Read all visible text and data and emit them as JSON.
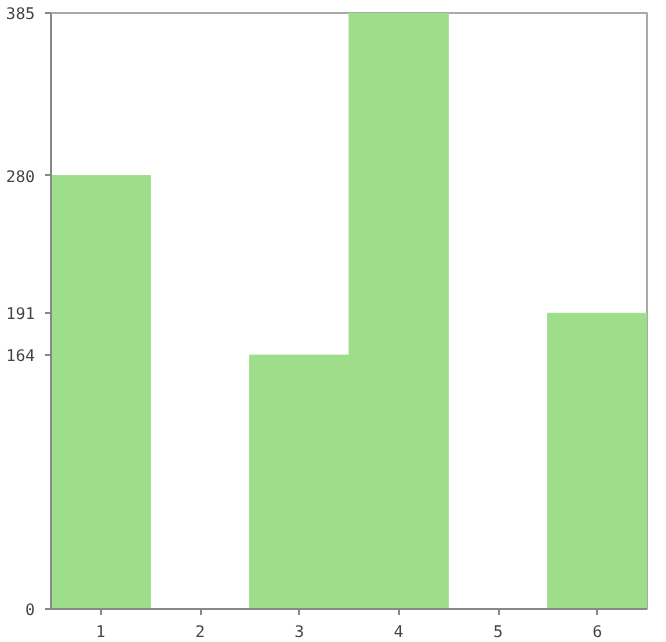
{
  "chart_data": {
    "type": "bar",
    "categories": [
      "1",
      "2",
      "3",
      "4",
      "5",
      "6"
    ],
    "values": [
      280,
      0,
      164,
      385,
      0,
      191
    ],
    "color": "#9ede8a",
    "ylim": [
      0,
      385
    ],
    "yticks": [
      0,
      164,
      191,
      280,
      385
    ],
    "grid": false
  }
}
